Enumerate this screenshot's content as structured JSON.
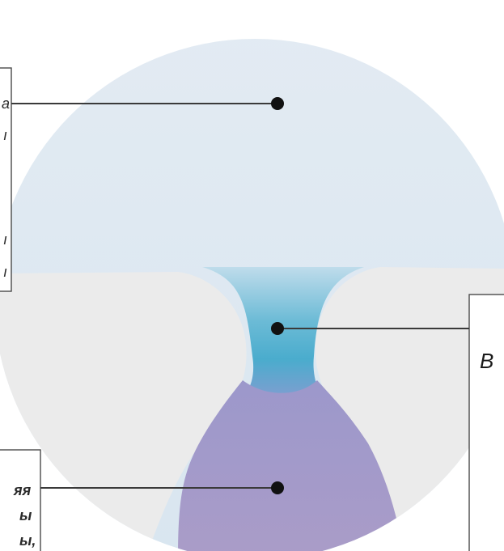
{
  "colors": {
    "top_zone": "#dde8f1",
    "middle_zone": "#ececec",
    "neck": "#4fb0cf",
    "bottom_zone": "#a79bc9",
    "leader_line": "#3a3a3a",
    "dot": "#111111",
    "box_border": "#4a4a4a"
  },
  "labels": {
    "left_top_fragments": [
      "a",
      "ı",
      "ı",
      "ı"
    ],
    "right_box_letter": "B",
    "bottom_left_fragments": [
      "яя",
      "ы",
      "ы,"
    ]
  }
}
